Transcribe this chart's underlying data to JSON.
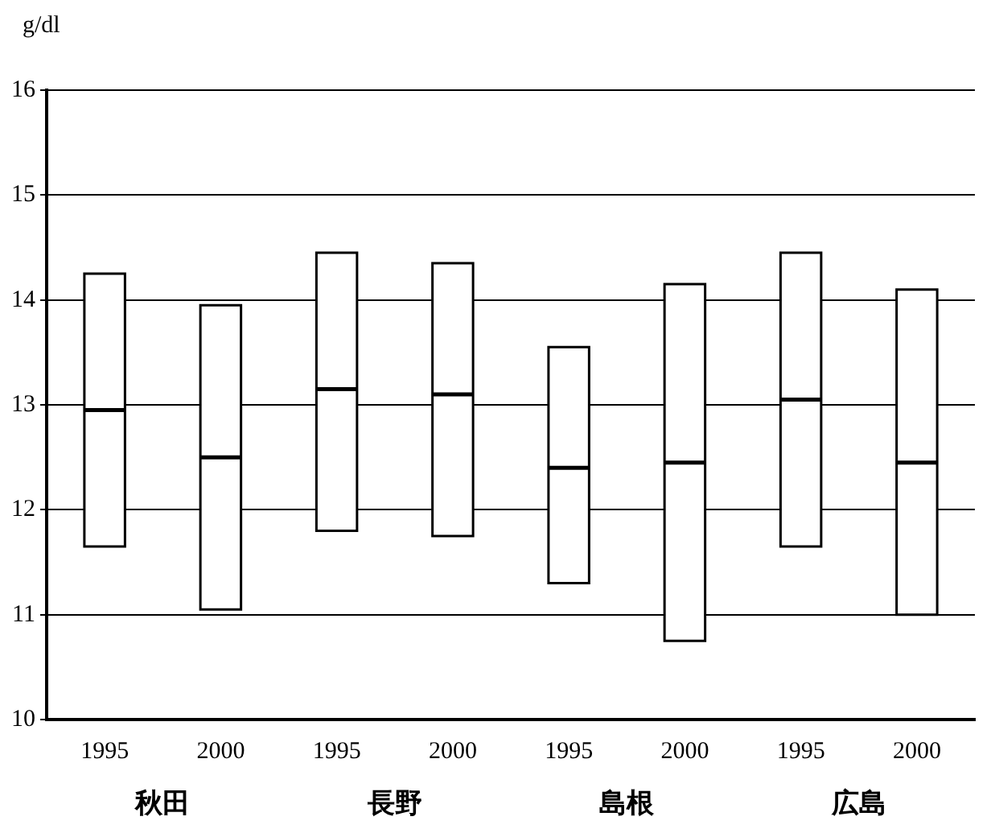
{
  "chart_data": {
    "type": "box",
    "ylabel": "g/dl",
    "categories": [
      "1995",
      "2000",
      "1995",
      "2000",
      "1995",
      "2000",
      "1995",
      "2000"
    ],
    "boxes": [
      {
        "low": 11.65,
        "q1": 11.65,
        "median": 12.95,
        "q3": 14.25,
        "high": 14.25
      },
      {
        "low": 11.05,
        "q1": 11.05,
        "median": 12.5,
        "q3": 13.95,
        "high": 13.95
      },
      {
        "low": 11.8,
        "q1": 11.8,
        "median": 13.15,
        "q3": 14.45,
        "high": 14.45
      },
      {
        "low": 11.75,
        "q1": 11.75,
        "median": 13.1,
        "q3": 14.35,
        "high": 14.35
      },
      {
        "low": 11.3,
        "q1": 11.3,
        "median": 12.4,
        "q3": 13.55,
        "high": 13.55
      },
      {
        "low": 10.75,
        "q1": 10.75,
        "median": 12.45,
        "q3": 14.15,
        "high": 14.15
      },
      {
        "low": 11.65,
        "q1": 11.65,
        "median": 13.05,
        "q3": 14.45,
        "high": 14.45
      },
      {
        "low": 11.0,
        "q1": 11.0,
        "median": 12.45,
        "q3": 14.1,
        "high": 14.1
      }
    ],
    "ylim": [
      10,
      16
    ],
    "yticks": [
      10,
      11,
      12,
      13,
      14,
      15,
      16
    ],
    "grid": "y",
    "annotations": [
      "秋田",
      "長野",
      "島根",
      "広島"
    ]
  }
}
